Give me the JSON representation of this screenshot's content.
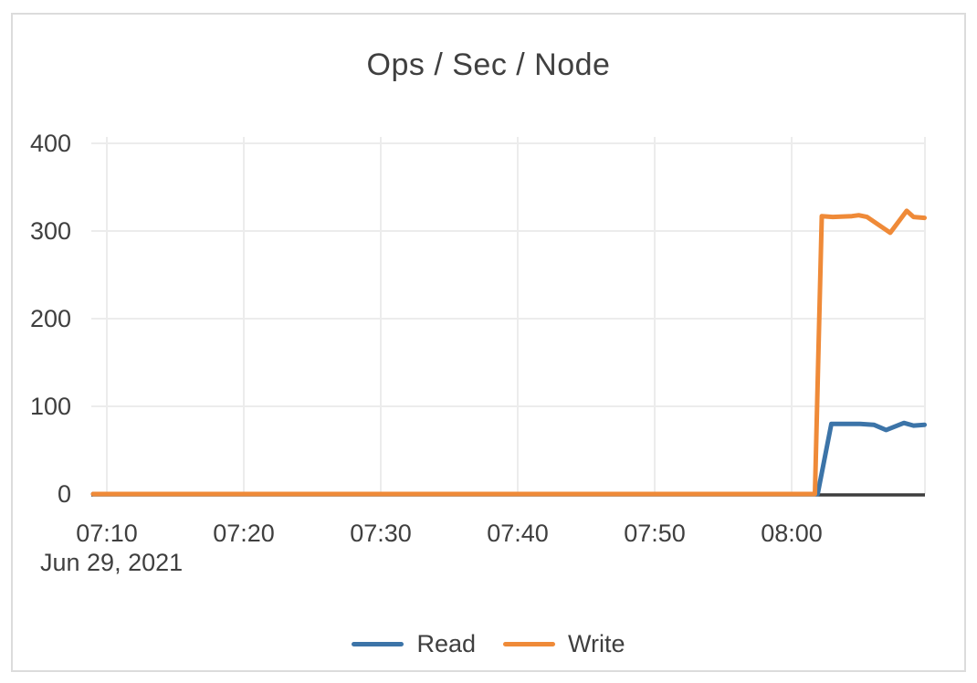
{
  "chart_data": {
    "type": "line",
    "title": "Ops / Sec / Node",
    "x_axis": {
      "tick_labels": [
        "07:10",
        "07:20",
        "07:30",
        "07:40",
        "07:50",
        "08:00"
      ],
      "tick_minutes": [
        10,
        20,
        30,
        40,
        50,
        60
      ],
      "date_label": "Jun 29, 2021",
      "unit": "minutes after 07:00, Jun 29 2021",
      "domain_minutes": [
        9,
        69.7
      ]
    },
    "y_axis": {
      "ticks": [
        0,
        100,
        200,
        300,
        400
      ],
      "tick_labels": [
        "0",
        "100",
        "200",
        "300",
        "400"
      ],
      "lim": [
        0,
        400
      ]
    },
    "grid": true,
    "legend_position": "bottom",
    "series": [
      {
        "name": "Read",
        "color": "#3c74a8",
        "points": [
          [
            9,
            0
          ],
          [
            15,
            0
          ],
          [
            20,
            0
          ],
          [
            25,
            0
          ],
          [
            30,
            0
          ],
          [
            35,
            0
          ],
          [
            40,
            0
          ],
          [
            45,
            0
          ],
          [
            50,
            0
          ],
          [
            55,
            0
          ],
          [
            60,
            0
          ],
          [
            61.9,
            0
          ],
          [
            62.9,
            80
          ],
          [
            64,
            80
          ],
          [
            65,
            80
          ],
          [
            66,
            79
          ],
          [
            66.9,
            73
          ],
          [
            68.2,
            81
          ],
          [
            68.9,
            78
          ],
          [
            69.7,
            79
          ]
        ]
      },
      {
        "name": "Write",
        "color": "#ef8a38",
        "points": [
          [
            9,
            0
          ],
          [
            15,
            0
          ],
          [
            20,
            0
          ],
          [
            25,
            0
          ],
          [
            30,
            0
          ],
          [
            35,
            0
          ],
          [
            40,
            0
          ],
          [
            45,
            0
          ],
          [
            50,
            0
          ],
          [
            55,
            0
          ],
          [
            60,
            0
          ],
          [
            61.7,
            0
          ],
          [
            62.2,
            317
          ],
          [
            63,
            316
          ],
          [
            64.4,
            317
          ],
          [
            64.9,
            318
          ],
          [
            65.5,
            316
          ],
          [
            67.2,
            298
          ],
          [
            68.4,
            323
          ],
          [
            68.9,
            316
          ],
          [
            69.7,
            315
          ]
        ]
      }
    ]
  },
  "colors": {
    "background": "#ffffff",
    "frame_border": "#dcdcdc",
    "grid_line": "#ececec",
    "axis_line": "#3d3d3d",
    "text": "#3f3f3f"
  }
}
